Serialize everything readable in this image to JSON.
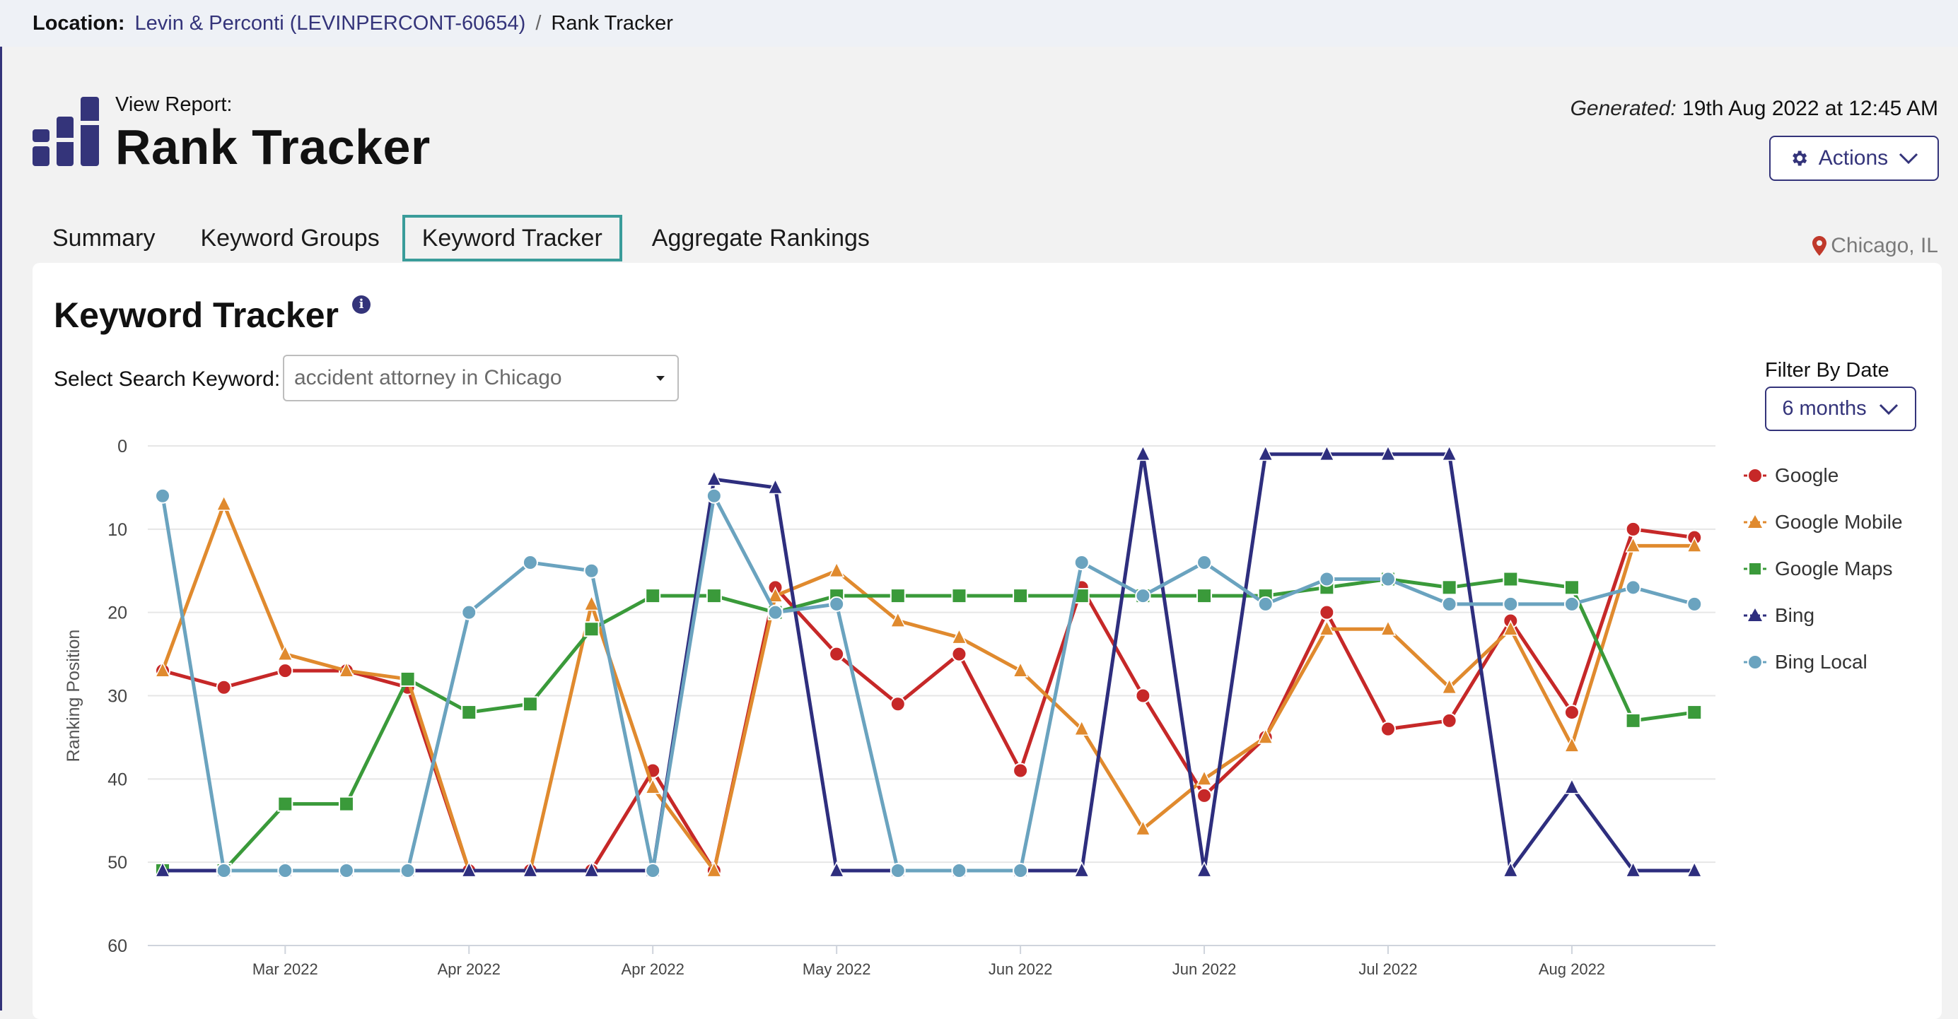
{
  "location": {
    "label": "Location:",
    "link": "Levin & Perconti (LEVINPERCONT-60654)",
    "separator": "/",
    "current": "Rank Tracker"
  },
  "header": {
    "view_report": "View Report:",
    "title": "Rank Tracker",
    "generated_label": "Generated:",
    "generated_value": "19th Aug 2022 at 12:45 AM",
    "actions_label": "Actions"
  },
  "tabs": [
    {
      "label": "Summary",
      "active": false
    },
    {
      "label": "Keyword Groups",
      "active": false
    },
    {
      "label": "Keyword Tracker",
      "active": true
    },
    {
      "label": "Aggregate Rankings",
      "active": false
    }
  ],
  "city": "Chicago, IL",
  "panel": {
    "title": "Keyword Tracker",
    "info_icon": "i",
    "keyword_label": "Select Search Keyword:",
    "keyword_value": "accident attorney in Chicago",
    "filter_label": "Filter By Date",
    "filter_value": "6 months"
  },
  "icons": {
    "report": "bar-chart-icon",
    "gear": "gear-icon",
    "chevron": "chevron-down-icon",
    "pin": "map-pin-icon",
    "info": "info-icon",
    "caret": "caret-down-icon"
  },
  "colors": {
    "brand": "#34347a",
    "active_tab": "#3a9c9a",
    "pin": "#c0392b"
  },
  "chart_data": {
    "type": "line",
    "ylabel": "Ranking Position",
    "ylim": [
      60,
      0
    ],
    "yticks": [
      0,
      10,
      20,
      30,
      40,
      50,
      60
    ],
    "y_inverted": true,
    "grid": true,
    "legend_position": "right",
    "x_tick_labels": [
      "Mar 2022",
      "Apr 2022",
      "Apr 2022",
      "May 2022",
      "Jun 2022",
      "Jun 2022",
      "Jul 2022",
      "Aug 2022"
    ],
    "x_tick_index": [
      2,
      5,
      8,
      11,
      14,
      17,
      20,
      23
    ],
    "x_count": 26,
    "series": [
      {
        "name": "Google",
        "color": "#c62828",
        "marker": "circle",
        "values": [
          27,
          29,
          27,
          27,
          29,
          51,
          51,
          51,
          39,
          51,
          17,
          25,
          31,
          25,
          39,
          17,
          30,
          42,
          35,
          20,
          34,
          33,
          21,
          32,
          10,
          11
        ]
      },
      {
        "name": "Google Mobile",
        "color": "#e08a2e",
        "marker": "triangle",
        "values": [
          27,
          7,
          25,
          27,
          28,
          51,
          51,
          19,
          41,
          51,
          18,
          15,
          21,
          23,
          27,
          34,
          46,
          40,
          35,
          22,
          22,
          29,
          22,
          36,
          12,
          12
        ]
      },
      {
        "name": "Google Maps",
        "color": "#3a9a3a",
        "marker": "square",
        "values": [
          51,
          51,
          43,
          43,
          28,
          32,
          31,
          22,
          18,
          18,
          20,
          18,
          18,
          18,
          18,
          18,
          18,
          18,
          18,
          17,
          16,
          17,
          16,
          17,
          33,
          32
        ]
      },
      {
        "name": "Bing",
        "color": "#2e2e7e",
        "marker": "triangle",
        "values": [
          51,
          51,
          51,
          51,
          51,
          51,
          51,
          51,
          51,
          4,
          5,
          51,
          51,
          51,
          51,
          51,
          1,
          51,
          1,
          1,
          1,
          1,
          51,
          41,
          51,
          51
        ]
      },
      {
        "name": "Bing Local",
        "color": "#6aa3bf",
        "marker": "circle",
        "values": [
          6,
          51,
          51,
          51,
          51,
          20,
          14,
          15,
          51,
          6,
          20,
          19,
          51,
          51,
          51,
          14,
          18,
          14,
          19,
          16,
          16,
          19,
          19,
          19,
          17,
          19
        ]
      }
    ]
  }
}
